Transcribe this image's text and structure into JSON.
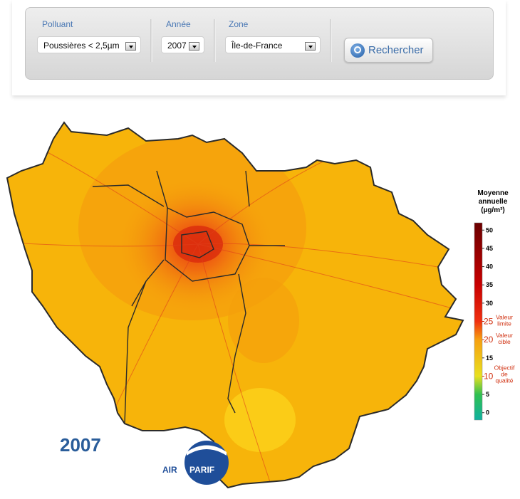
{
  "form": {
    "fields": [
      {
        "label": "Polluant",
        "value": "Poussières < 2,5µm"
      },
      {
        "label": "Année",
        "value": "2007"
      },
      {
        "label": "Zone",
        "value": "Île-de-France"
      }
    ],
    "button": "Rechercher"
  },
  "map": {
    "year": "2007",
    "logo": {
      "left": "AIR",
      "right": "PARIF"
    },
    "legend": {
      "title_lines": [
        "Moyenne",
        "annuelle",
        "(µg/m³)"
      ],
      "lim": [
        -2,
        52
      ],
      "ticks": [
        50,
        45,
        40,
        35,
        30,
        15,
        5,
        0
      ],
      "thresholds": [
        {
          "value": 25,
          "lines": [
            "Valeur",
            "limite"
          ]
        },
        {
          "value": 20,
          "lines": [
            "Valeur",
            "cible"
          ]
        },
        {
          "value": 10,
          "lines": [
            "Objectif",
            "de",
            "qualité"
          ]
        }
      ]
    }
  }
}
